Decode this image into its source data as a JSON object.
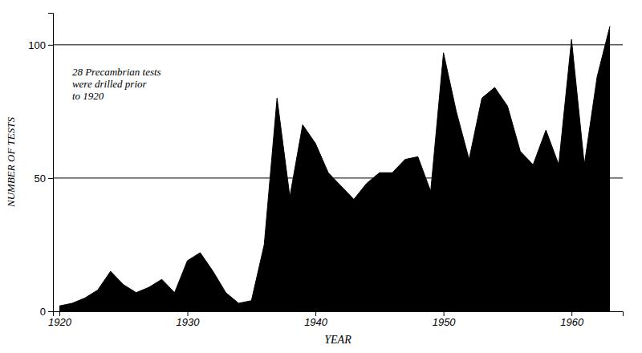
{
  "chart_data": {
    "type": "area",
    "xlabel": "YEAR",
    "ylabel": "NUMBER OF TESTS",
    "x": [
      1920,
      1921,
      1922,
      1923,
      1924,
      1925,
      1926,
      1927,
      1928,
      1929,
      1930,
      1931,
      1932,
      1933,
      1934,
      1935,
      1936,
      1937,
      1938,
      1939,
      1940,
      1941,
      1942,
      1943,
      1944,
      1945,
      1946,
      1947,
      1948,
      1949,
      1950,
      1951,
      1952,
      1953,
      1954,
      1955,
      1956,
      1957,
      1958,
      1959,
      1960,
      1961,
      1962,
      1963
    ],
    "values": [
      2,
      3,
      5,
      8,
      15,
      10,
      7,
      9,
      12,
      7,
      19,
      22,
      15,
      7,
      3,
      4,
      25,
      80,
      43,
      70,
      63,
      52,
      47,
      42,
      48,
      52,
      52,
      57,
      58,
      45,
      97,
      75,
      57,
      80,
      84,
      77,
      60,
      55,
      68,
      55,
      102,
      55,
      88,
      107
    ],
    "color": "#000000",
    "xlim": [
      1919.5,
      1964
    ],
    "ylim": [
      0,
      112
    ],
    "xticks": [
      1920,
      1930,
      1940,
      1950,
      1960
    ],
    "yticks": [
      0,
      50,
      100
    ],
    "hlines": [
      50,
      100
    ],
    "annotations": [
      {
        "text": "28  Precambrian tests\nwere drilled prior\nto 1920",
        "x": 1921,
        "y": 92
      }
    ],
    "grid": false
  }
}
